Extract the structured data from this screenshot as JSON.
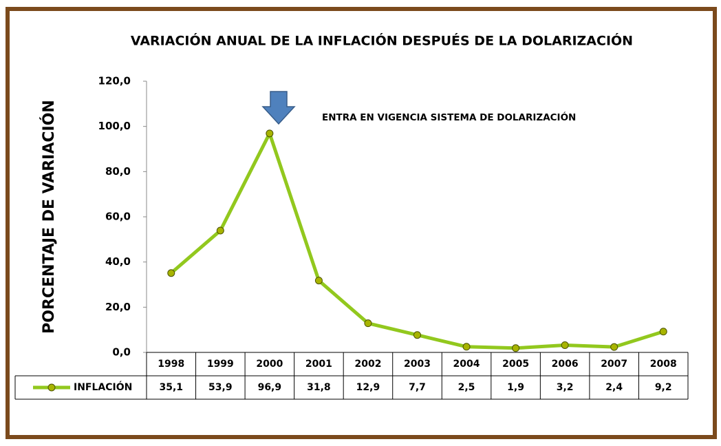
{
  "chart_data": {
    "type": "line",
    "title": "VARIACIÓN ANUAL DE LA INFLACIÓN DESPUÉS DE LA DOLARIZACIÓN",
    "y_label": "PORCENTAJE DE VARIACIÓN",
    "annotation": "ENTRA EN VIGENCIA SISTEMA DE DOLARIZACIÓN",
    "categories": [
      "1998",
      "1999",
      "2000",
      "2001",
      "2002",
      "2003",
      "2004",
      "2005",
      "2006",
      "2007",
      "2008"
    ],
    "series": [
      {
        "name": "INFLACIÓN",
        "color": "#92c81e",
        "values": [
          35.1,
          53.9,
          96.9,
          31.8,
          12.9,
          7.7,
          2.5,
          1.9,
          3.2,
          2.4,
          9.2
        ],
        "value_labels": [
          "35,1",
          "53,9",
          "96,9",
          "31,8",
          "12,9",
          "7,7",
          "2,5",
          "1,9",
          "3,2",
          "2,4",
          "9,2"
        ]
      }
    ],
    "ylim": [
      0,
      120
    ],
    "yticks": [
      {
        "value": 0,
        "label": "0,0"
      },
      {
        "value": 20,
        "label": "20,0"
      },
      {
        "value": 40,
        "label": "40,0"
      },
      {
        "value": 60,
        "label": "60,0"
      },
      {
        "value": 80,
        "label": "80,0"
      },
      {
        "value": 100,
        "label": "100,0"
      },
      {
        "value": 120,
        "label": "120,0"
      }
    ],
    "grid": false
  }
}
